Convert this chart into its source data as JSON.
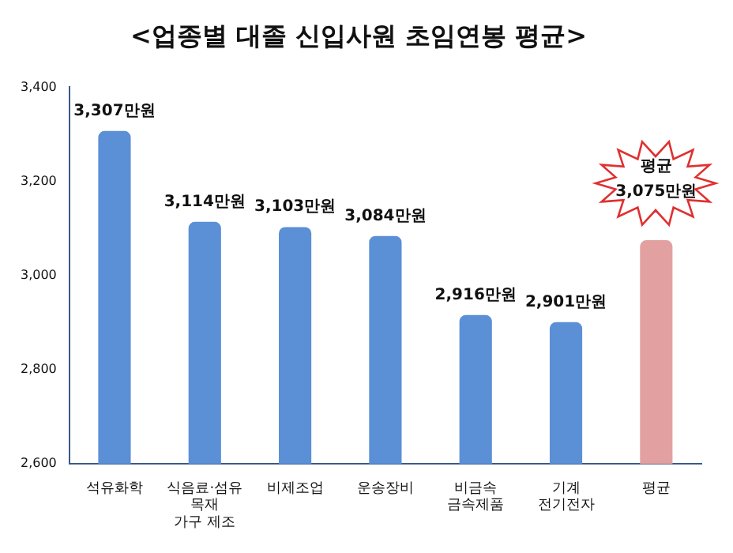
{
  "chart_data": {
    "type": "bar",
    "title": "<업종별 대졸 신입사원 초임연봉 평균>",
    "categories": [
      "석유화학",
      "식음료·섬유\n목재\n가구 제조",
      "비제조업",
      "운송장비",
      "비금속\n금속제품",
      "기계\n전기전자",
      "평균"
    ],
    "values": [
      3307,
      3114,
      3103,
      3084,
      2916,
      2901,
      3075
    ],
    "colors": [
      "#5b8fd6",
      "#5b8fd6",
      "#5b8fd6",
      "#5b8fd6",
      "#5b8fd6",
      "#5b8fd6",
      "#e3a0a0"
    ],
    "value_labels": [
      "3,307만원",
      "3,114만원",
      "3,103만원",
      "3,084만원",
      "2,916만원",
      "2,901만원",
      "3,075만원"
    ],
    "annotations": [
      "평균"
    ],
    "ylim": [
      2600,
      3400
    ],
    "yticks": [
      {
        "value": 2600,
        "label": "2,600"
      },
      {
        "value": 2800,
        "label": "2,800"
      },
      {
        "value": 3000,
        "label": "3,000"
      },
      {
        "value": 3200,
        "label": "3,200"
      },
      {
        "value": 3400,
        "label": "3,400"
      }
    ],
    "grid": false,
    "legend": false
  }
}
